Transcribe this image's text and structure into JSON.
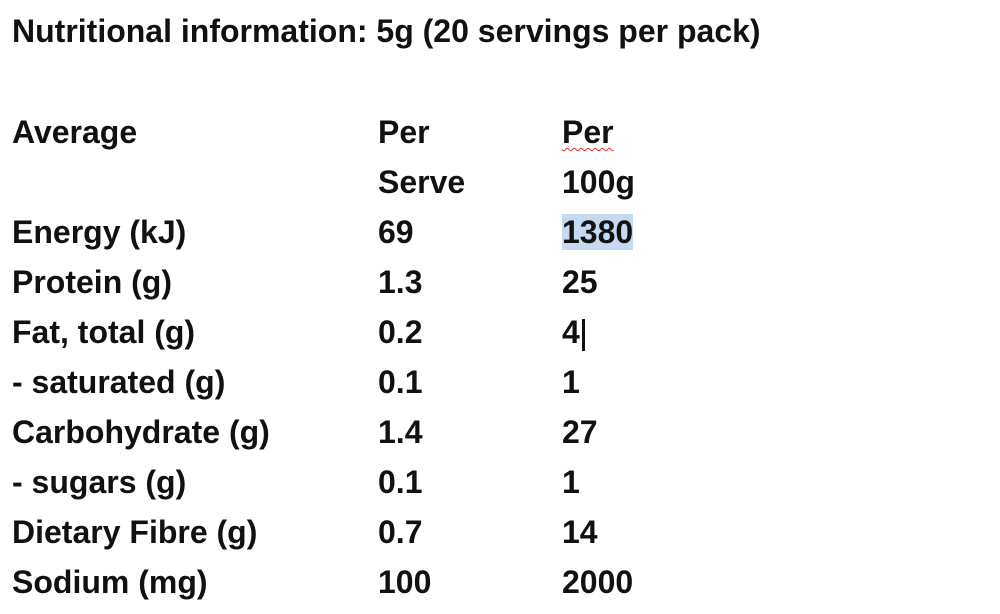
{
  "title": "Nutritional information: 5g (20 servings per pack)",
  "table": {
    "header": [
      "Average",
      "Per\nServe",
      "Per\n100g"
    ],
    "rows": [
      [
        "Energy (kJ)",
        "69",
        "1380"
      ],
      [
        "Protein (g)",
        "1.3",
        "25"
      ],
      [
        "Fat, total (g)",
        "0.2",
        "4"
      ],
      [
        "- saturated (g)",
        "0.1",
        "1"
      ],
      [
        "Carbohydrate (g)",
        "1.4",
        "27"
      ],
      [
        "- sugars (g)",
        "0.1",
        "1"
      ],
      [
        "Dietary Fibre (g)",
        "0.7",
        "14"
      ],
      [
        "Sodium (mg)",
        "100",
        "2000"
      ]
    ]
  }
}
